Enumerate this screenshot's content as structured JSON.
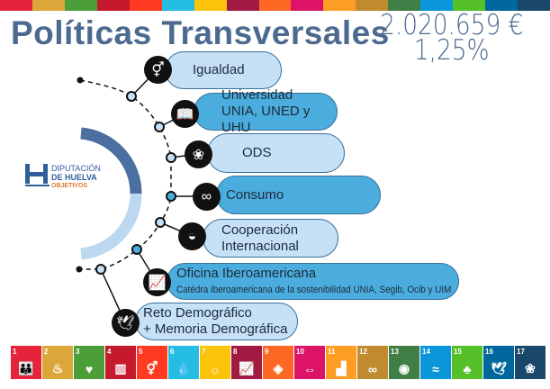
{
  "sdg_colors": [
    "#e5243b",
    "#dda63a",
    "#4c9f38",
    "#c5192d",
    "#ff3a21",
    "#26bde2",
    "#fcc30b",
    "#a21942",
    "#fd6925",
    "#dd1367",
    "#fd9d24",
    "#bf8b2e",
    "#3f7e44",
    "#0a97d9",
    "#56c02b",
    "#00689d",
    "#19486a"
  ],
  "header": {
    "title": "Políticas Transversales",
    "amount": "2.020.659 €",
    "percent": "1,25%"
  },
  "logo": {
    "line1": "DIPUTACIÓN",
    "line2": "DE HUELVA",
    "line3": "OBJETIVOS"
  },
  "items": [
    {
      "title": "Igualdad",
      "icon": "gender-equality-icon",
      "glyph": "⚥"
    },
    {
      "title": "Universidad",
      "subtitle": "UNIA, UNED y UHU",
      "icon": "book-icon",
      "glyph": "📖"
    },
    {
      "title": "ODS",
      "icon": "sdg-wheel-icon",
      "glyph": "❀"
    },
    {
      "title": "Consumo",
      "icon": "infinity-icon",
      "glyph": "∞"
    },
    {
      "title": "Cooperación",
      "subtitle": "Internacional",
      "icon": "bowl-icon",
      "glyph": "◒"
    },
    {
      "title": "Oficina Iberoamericana",
      "subtitle": "Catédra Iberoamericana de la sostenibilidad UNIA, Segib, Ocib y UIM",
      "icon": "growth-chart-icon",
      "glyph": "📈"
    },
    {
      "title": "Reto Demográfico",
      "subtitle": "+ Memoria Demográfica",
      "icon": "dove-icon",
      "glyph": "🕊"
    }
  ],
  "sdg_tiles": [
    {
      "n": "1",
      "glyph": "👪"
    },
    {
      "n": "2",
      "glyph": "♨"
    },
    {
      "n": "3",
      "glyph": "♥"
    },
    {
      "n": "4",
      "glyph": "▥"
    },
    {
      "n": "5",
      "glyph": "⚥"
    },
    {
      "n": "6",
      "glyph": "💧"
    },
    {
      "n": "7",
      "glyph": "☼"
    },
    {
      "n": "8",
      "glyph": "📈"
    },
    {
      "n": "9",
      "glyph": "◈"
    },
    {
      "n": "10",
      "glyph": "⇔"
    },
    {
      "n": "11",
      "glyph": "▟"
    },
    {
      "n": "12",
      "glyph": "∞"
    },
    {
      "n": "13",
      "glyph": "◉"
    },
    {
      "n": "14",
      "glyph": "≈"
    },
    {
      "n": "15",
      "glyph": "♣"
    },
    {
      "n": "16",
      "glyph": "🕊"
    },
    {
      "n": "17",
      "glyph": "❀"
    }
  ]
}
